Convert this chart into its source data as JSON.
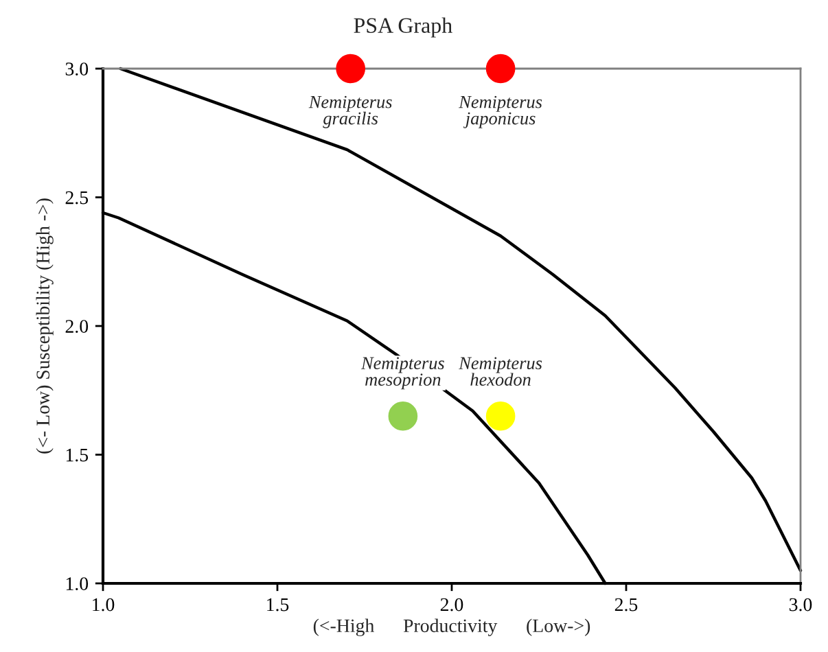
{
  "chart_data": {
    "type": "scatter",
    "title": "PSA Graph",
    "xlabel": "(<-High      Productivity      (Low->)",
    "ylabel": "(<- Low) Susceptibility (High ->)",
    "xlim": [
      1.0,
      3.0
    ],
    "ylim": [
      1.0,
      3.0
    ],
    "xticks": [
      {
        "value": 1.0,
        "label": "1.0"
      },
      {
        "value": 1.5,
        "label": "1.5"
      },
      {
        "value": 2.0,
        "label": "2.0"
      },
      {
        "value": 2.5,
        "label": "2.5"
      },
      {
        "value": 3.0,
        "label": "3.0"
      }
    ],
    "yticks": [
      {
        "value": 1.0,
        "label": "1.0"
      },
      {
        "value": 1.5,
        "label": "1.5"
      },
      {
        "value": 2.0,
        "label": "2.0"
      },
      {
        "value": 2.5,
        "label": "2.5"
      },
      {
        "value": 3.0,
        "label": "3.0"
      }
    ],
    "grid": false,
    "legend": false,
    "series": [
      {
        "type": "line",
        "color": "#000000",
        "x": [
          1.05,
          1.7,
          2.14,
          2.29,
          2.44,
          2.64,
          2.75,
          2.86,
          2.9,
          3.0
        ],
        "values": [
          3.0,
          2.685,
          2.35,
          2.2,
          2.04,
          1.76,
          1.59,
          1.41,
          1.32,
          1.05
        ]
      },
      {
        "type": "line",
        "color": "#000000",
        "x": [
          1.0,
          1.045,
          1.4,
          1.7,
          1.84,
          2.06,
          2.25,
          2.39,
          2.44
        ],
        "values": [
          2.44,
          2.42,
          2.2,
          2.02,
          1.89,
          1.67,
          1.39,
          1.11,
          1.0
        ]
      },
      {
        "marker": "circle",
        "x": [
          1.71,
          2.14,
          1.86,
          2.14
        ],
        "values": [
          3.0,
          3.0,
          1.65,
          1.65
        ],
        "colors": [
          "#ff0000",
          "#ff0000",
          "#92d050",
          "#ffff00"
        ]
      }
    ],
    "annotations": [
      {
        "text": "Nemipterus\ngracilis",
        "x": 1.71,
        "y": 3.0
      },
      {
        "text": "Nemipterus\njaponicus",
        "x": 2.14,
        "y": 3.0
      },
      {
        "text": "Nemipterus\nmesoprion",
        "x": 1.86,
        "y": 1.65
      },
      {
        "text": "Nemipterus\nhexodon",
        "x": 2.14,
        "y": 1.65
      }
    ]
  }
}
